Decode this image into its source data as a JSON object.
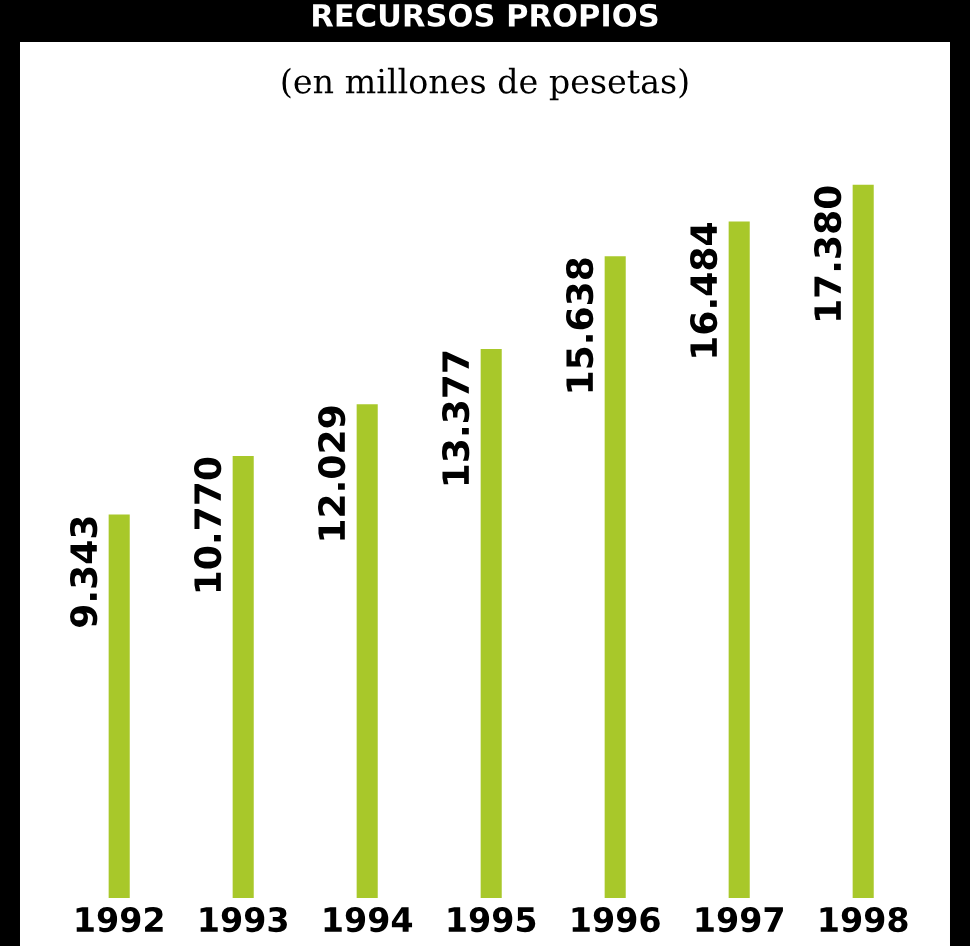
{
  "chart_data": {
    "type": "bar",
    "title": "RECURSOS PROPIOS",
    "subtitle": "(en millones de pesetas)",
    "categories": [
      "1992",
      "1993",
      "1994",
      "1995",
      "1996",
      "1997",
      "1998"
    ],
    "values": [
      9343,
      10770,
      12029,
      13377,
      15638,
      16484,
      17380
    ],
    "value_labels": [
      "9.343",
      "10.770",
      "12.029",
      "13.377",
      "15.638",
      "16.484",
      "17.380"
    ],
    "color": "#a8c82a",
    "grid": false,
    "legend": false
  }
}
